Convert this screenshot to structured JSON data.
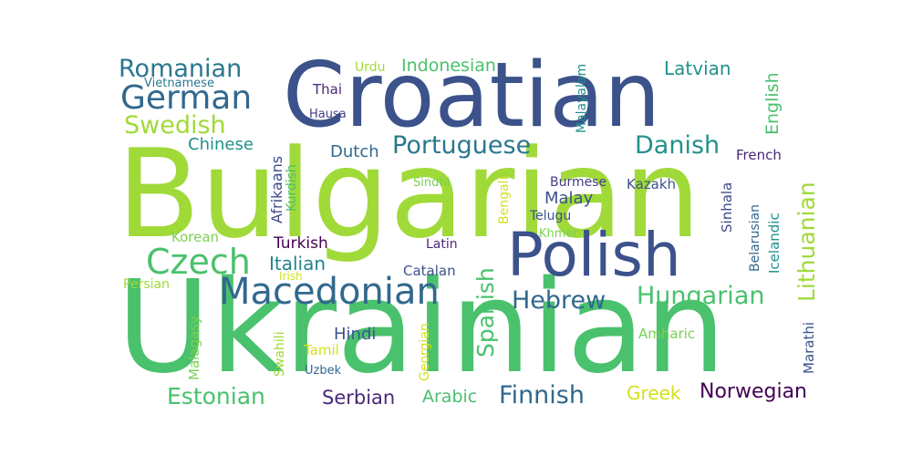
{
  "words": {
    "bulgarian": {
      "text": "Bulgarian",
      "color": "#a0da39"
    },
    "ukrainian": {
      "text": "Ukrainian",
      "color": "#4ac16d"
    },
    "croatian": {
      "text": "Croatian",
      "color": "#3b528b"
    },
    "polish": {
      "text": "Polish",
      "color": "#3b528b"
    },
    "macedonian": {
      "text": "Macedonian",
      "color": "#31688e"
    },
    "german": {
      "text": "German",
      "color": "#31688e"
    },
    "romanian": {
      "text": "Romanian",
      "color": "#2a788e"
    },
    "swedish": {
      "text": "Swedish",
      "color": "#a0da39"
    },
    "czech": {
      "text": "Czech",
      "color": "#4ac16d"
    },
    "portuguese": {
      "text": "Portuguese",
      "color": "#2a788e"
    },
    "danish": {
      "text": "Danish",
      "color": "#21918c"
    },
    "hungarian": {
      "text": "Hungarian",
      "color": "#4ac16d"
    },
    "lithuanian": {
      "text": "Lithuanian",
      "color": "#a0da39"
    },
    "spanish": {
      "text": "Spanish",
      "color": "#4ac16d"
    },
    "hebrew": {
      "text": "Hebrew",
      "color": "#31688e"
    },
    "estonian": {
      "text": "Estonian",
      "color": "#4ac16d"
    },
    "finnish": {
      "text": "Finnish",
      "color": "#31688e"
    },
    "norwegian": {
      "text": "Norwegian",
      "color": "#440154"
    },
    "serbian": {
      "text": "Serbian",
      "color": "#482878"
    },
    "arabic": {
      "text": "Arabic",
      "color": "#4ac16d"
    },
    "greek": {
      "text": "Greek",
      "color": "#d2e21b"
    },
    "indonesian": {
      "text": "Indonesian",
      "color": "#4ac16d"
    },
    "latvian": {
      "text": "Latvian",
      "color": "#21918c"
    },
    "english": {
      "text": "English",
      "color": "#4ac16d"
    },
    "italian": {
      "text": "Italian",
      "color": "#26828e"
    },
    "turkish": {
      "text": "Turkish",
      "color": "#440154"
    },
    "chinese": {
      "text": "Chinese",
      "color": "#21918c"
    },
    "dutch": {
      "text": "Dutch",
      "color": "#31688e"
    },
    "malay": {
      "text": "Malay",
      "color": "#3b528b"
    },
    "afrikaans": {
      "text": "Afrikaans",
      "color": "#3e4989"
    },
    "kurdish": {
      "text": "Kurdish",
      "color": "#4ac16d"
    },
    "vietnamese": {
      "text": "Vietnamese",
      "color": "#2a788e"
    },
    "urdu": {
      "text": "Urdu",
      "color": "#a0da39"
    },
    "thai": {
      "text": "Thai",
      "color": "#482878"
    },
    "hausa": {
      "text": "Hausa",
      "color": "#433e85"
    },
    "malayalam": {
      "text": "Malayalam",
      "color": "#21918c"
    },
    "french": {
      "text": "French",
      "color": "#482878"
    },
    "kazakh": {
      "text": "Kazakh",
      "color": "#3b528b"
    },
    "burmese": {
      "text": "Burmese",
      "color": "#433e85"
    },
    "telugu": {
      "text": "Telugu",
      "color": "#3b528b"
    },
    "khmer": {
      "text": "Khmer",
      "color": "#7ad151"
    },
    "sindhi": {
      "text": "Sindhi",
      "color": "#7ad151"
    },
    "bengali": {
      "text": "Bengali",
      "color": "#d2e21b"
    },
    "sinhala": {
      "text": "Sinhala",
      "color": "#3e4989"
    },
    "belarusian": {
      "text": "Belarusian",
      "color": "#31688e"
    },
    "icelandic": {
      "text": "Icelandic",
      "color": "#21918c"
    },
    "korean": {
      "text": "Korean",
      "color": "#7ad151"
    },
    "persian": {
      "text": "Persian",
      "color": "#a0da39"
    },
    "irish": {
      "text": "Irish",
      "color": "#d2e21b"
    },
    "latin": {
      "text": "Latin",
      "color": "#482878"
    },
    "catalan": {
      "text": "Catalan",
      "color": "#3b528b"
    },
    "malagasy": {
      "text": "Malagasy",
      "color": "#7ad151"
    },
    "swahili": {
      "text": "Swahili",
      "color": "#a0da39"
    },
    "tamil": {
      "text": "Tamil",
      "color": "#d2e21b"
    },
    "uzbek": {
      "text": "Uzbek",
      "color": "#31688e"
    },
    "hindi": {
      "text": "Hindi",
      "color": "#3b528b"
    },
    "georgian": {
      "text": "Georgian",
      "color": "#d2e21b"
    },
    "amharic": {
      "text": "Amharic",
      "color": "#7ad151"
    },
    "marathi": {
      "text": "Marathi",
      "color": "#3b528b"
    }
  }
}
